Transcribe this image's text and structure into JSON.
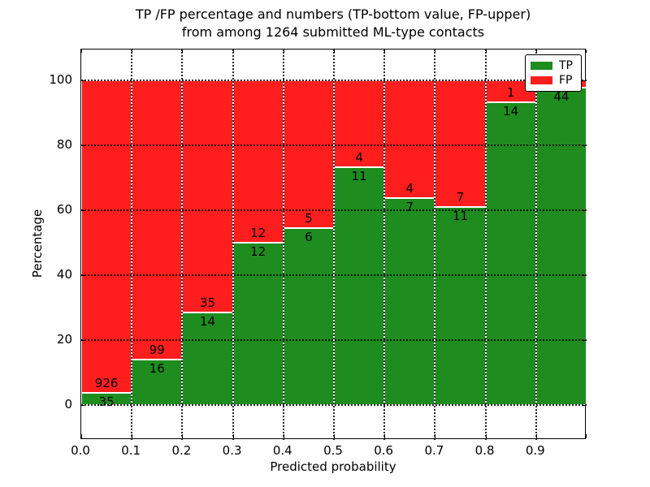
{
  "figure": {
    "title_line1": "TP /FP percentage and numbers (TP-bottom value, FP-upper)",
    "title_line2": "from among 1264 submitted ML-type contacts",
    "xlabel": "Predicted probability",
    "ylabel": "Percentage"
  },
  "legend": {
    "position": "upper right",
    "items": [
      {
        "label": "TP",
        "color": "#1e8c1e"
      },
      {
        "label": "FP",
        "color": "#ff1e1e"
      }
    ]
  },
  "colors": {
    "tp": "#1e8c1e",
    "fp": "#ff1e1e",
    "bar_edge": "#ffffff",
    "grid": "#000000",
    "axis": "#000000",
    "background": "#ffffff"
  },
  "chart_data": {
    "type": "bar",
    "stacked": true,
    "normalized": "percent",
    "title": "TP /FP percentage and numbers (TP-bottom value, FP-upper) from among 1264 submitted ML-type contacts",
    "total_contacts": 1264,
    "xlabel": "Predicted probability",
    "ylabel": "Percentage",
    "x_bin_edges": [
      0.0,
      0.1,
      0.2,
      0.3,
      0.4,
      0.5,
      0.6,
      0.7,
      0.8,
      0.9,
      1.0
    ],
    "x_tick_labels": [
      "0.0",
      "0.1",
      "0.2",
      "0.3",
      "0.4",
      "0.5",
      "0.6",
      "0.7",
      "0.8",
      "0.9"
    ],
    "y_ticks": [
      0,
      20,
      40,
      60,
      80,
      100
    ],
    "xlim": [
      0.0,
      1.0
    ],
    "ylim": [
      -10.75,
      109.5
    ],
    "grid": true,
    "legend_position": "upper right",
    "series": [
      {
        "name": "TP",
        "color": "#1e8c1e",
        "counts": [
          35,
          16,
          14,
          12,
          6,
          11,
          7,
          11,
          14,
          44
        ]
      },
      {
        "name": "FP",
        "color": "#ff1e1e",
        "counts": [
          926,
          99,
          35,
          12,
          5,
          4,
          4,
          7,
          1,
          1
        ]
      }
    ],
    "tp_percent": [
      3.64,
      13.91,
      28.57,
      50.0,
      54.55,
      73.33,
      63.64,
      61.11,
      93.33,
      97.78
    ]
  }
}
